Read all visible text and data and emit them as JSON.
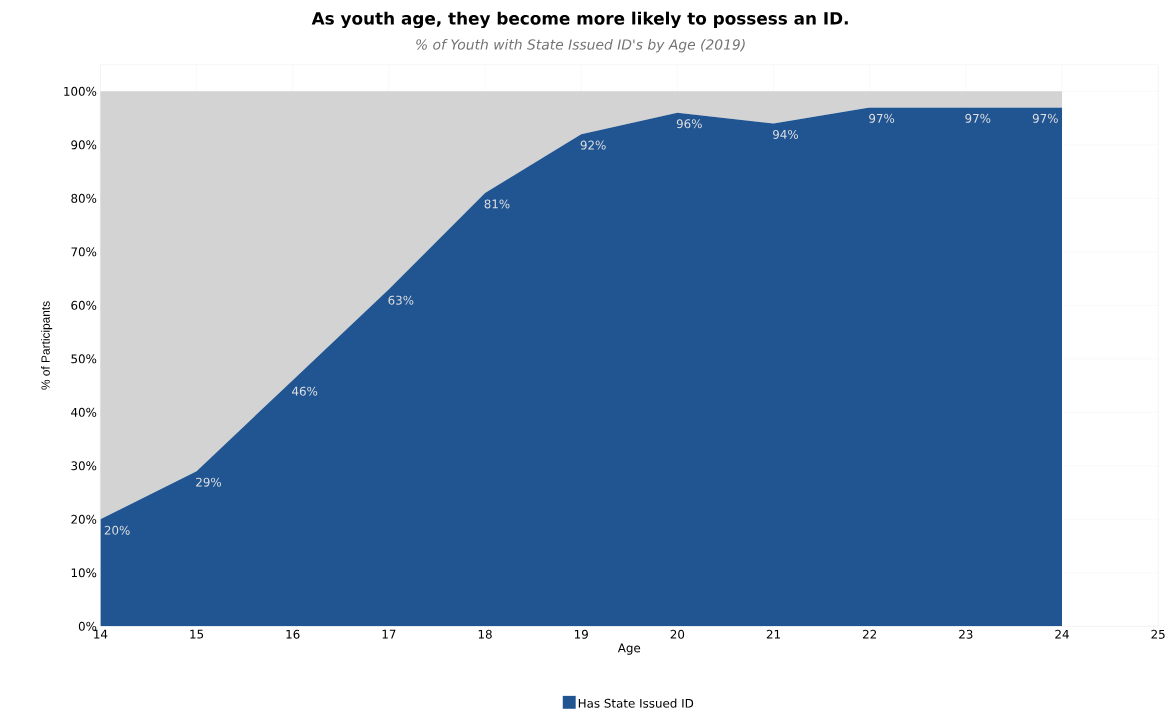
{
  "chart_data": {
    "type": "area",
    "stacked": true,
    "title": "As youth age, they become more likely to possess an ID.",
    "subtitle": "% of Youth with State Issued ID's by Age (2019)",
    "xlabel": "Age",
    "ylabel": "% of Participants",
    "x": [
      14,
      15,
      16,
      17,
      18,
      19,
      20,
      21,
      22,
      23,
      24
    ],
    "series": [
      {
        "name": "Has State Issued ID",
        "color": "#215592",
        "values": [
          20,
          29,
          46,
          63,
          81,
          92,
          96,
          94,
          97,
          97,
          97
        ],
        "value_labels": [
          "20%",
          "29%",
          "46%",
          "63%",
          "81%",
          "92%",
          "96%",
          "94%",
          "97%",
          "97%",
          "97%"
        ]
      },
      {
        "color": "#d3d3d3",
        "values": [
          80,
          71,
          54,
          37,
          19,
          8,
          4,
          6,
          3,
          3,
          3
        ]
      }
    ],
    "xlim": [
      14,
      25
    ],
    "xticks": [
      14,
      15,
      16,
      17,
      18,
      19,
      20,
      21,
      22,
      23,
      24,
      25
    ],
    "ylim": [
      0,
      105
    ],
    "yticks": [
      {
        "value": 0,
        "label": "0%"
      },
      {
        "value": 10,
        "label": "10%"
      },
      {
        "value": 20,
        "label": "20%"
      },
      {
        "value": 30,
        "label": "30%"
      },
      {
        "value": 40,
        "label": "40%"
      },
      {
        "value": 50,
        "label": "50%"
      },
      {
        "value": 60,
        "label": "60%"
      },
      {
        "value": 70,
        "label": "70%"
      },
      {
        "value": 80,
        "label": "80%"
      },
      {
        "value": 90,
        "label": "90%"
      },
      {
        "value": 100,
        "label": "100%"
      }
    ],
    "grid": true,
    "legend": "bottom"
  }
}
